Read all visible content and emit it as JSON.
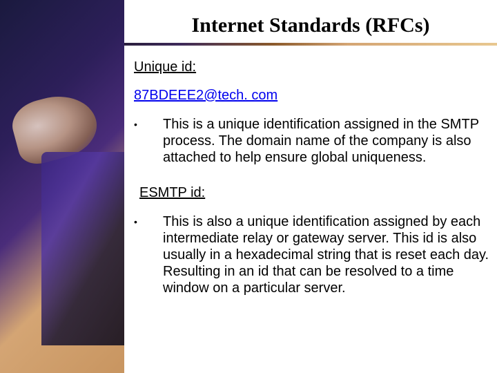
{
  "slide": {
    "title": "Internet Standards (RFCs)",
    "divider_gradient": [
      "#2a1f3d",
      "#3d2a5a",
      "#8b5a2b",
      "#d4a574",
      "#e8c890"
    ],
    "sections": [
      {
        "heading": "Unique id:",
        "link": "87BDEEE2@tech. com",
        "bullets": [
          "This is a unique identification assigned in the SMTP process.  The domain name of the company is also attached to help ensure global uniqueness."
        ]
      },
      {
        "heading": "ESMTP id:",
        "bullets": [
          "This is also a unique identification assigned by each intermediate relay or gateway server.  This id is also usually in a hexadecimal string that is reset each day.  Resulting in an id that can be resolved to a time window on a particular server."
        ]
      }
    ]
  },
  "colors": {
    "title_color": "#000000",
    "text_color": "#000000",
    "link_color": "#0000ee",
    "background": "#ffffff"
  },
  "typography": {
    "title_font": "Times New Roman",
    "title_size_pt": 22,
    "body_font": "Arial",
    "body_size_pt": 15
  }
}
